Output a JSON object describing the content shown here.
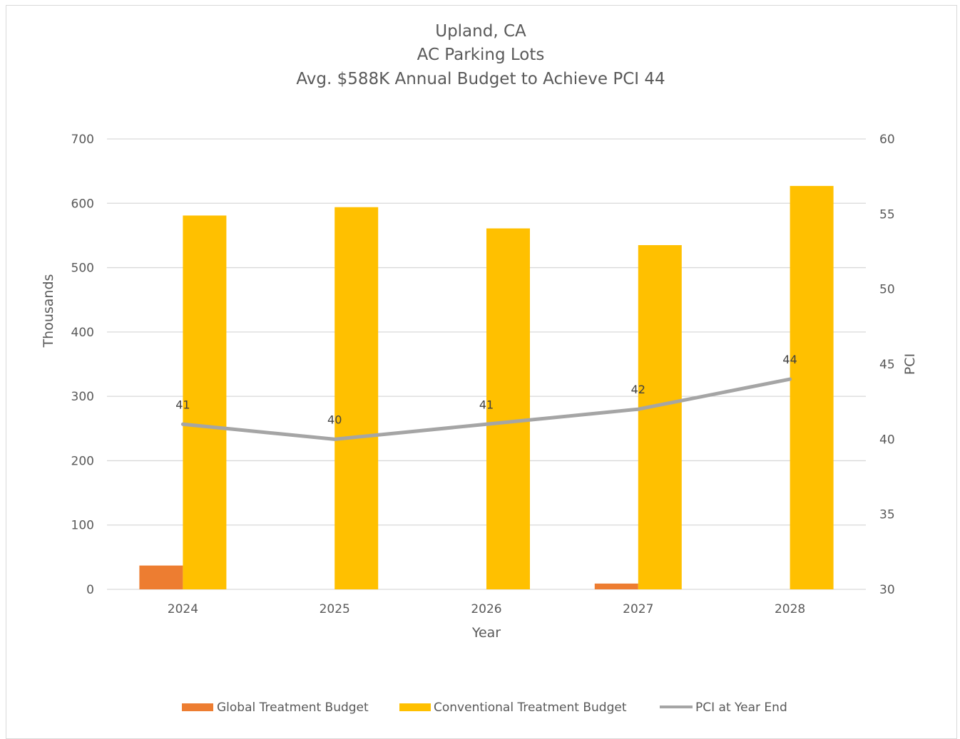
{
  "chart_data": {
    "type": "bar",
    "title_lines": [
      "Upland, CA",
      "AC Parking Lots",
      "Avg. $588K Annual Budget to Achieve PCI 44"
    ],
    "categories": [
      "2024",
      "2025",
      "2026",
      "2027",
      "2028"
    ],
    "xlabel": "Year",
    "ylabel": "Thousands",
    "y2label": "PCI",
    "ylim": [
      0,
      700
    ],
    "yticks": [
      0,
      100,
      200,
      300,
      400,
      500,
      600,
      700
    ],
    "y2lim": [
      30,
      60
    ],
    "y2ticks": [
      30,
      35,
      40,
      45,
      50,
      55,
      60
    ],
    "grid": true,
    "legend_position": "bottom",
    "series": [
      {
        "name": "Global Treatment Budget",
        "type": "bar",
        "axis": "left",
        "color": "#ed7d31",
        "values": [
          37,
          0,
          0,
          9,
          0
        ]
      },
      {
        "name": "Conventional Treatment  Budget",
        "type": "bar",
        "axis": "left",
        "color": "#ffc000",
        "values": [
          581,
          594,
          561,
          535,
          627
        ]
      },
      {
        "name": "PCI at Year End",
        "type": "line",
        "axis": "right",
        "color": "#a5a5a5",
        "values": [
          41,
          40,
          41,
          42,
          44
        ],
        "data_labels": [
          "41",
          "40",
          "41",
          "42",
          "44"
        ]
      }
    ]
  }
}
